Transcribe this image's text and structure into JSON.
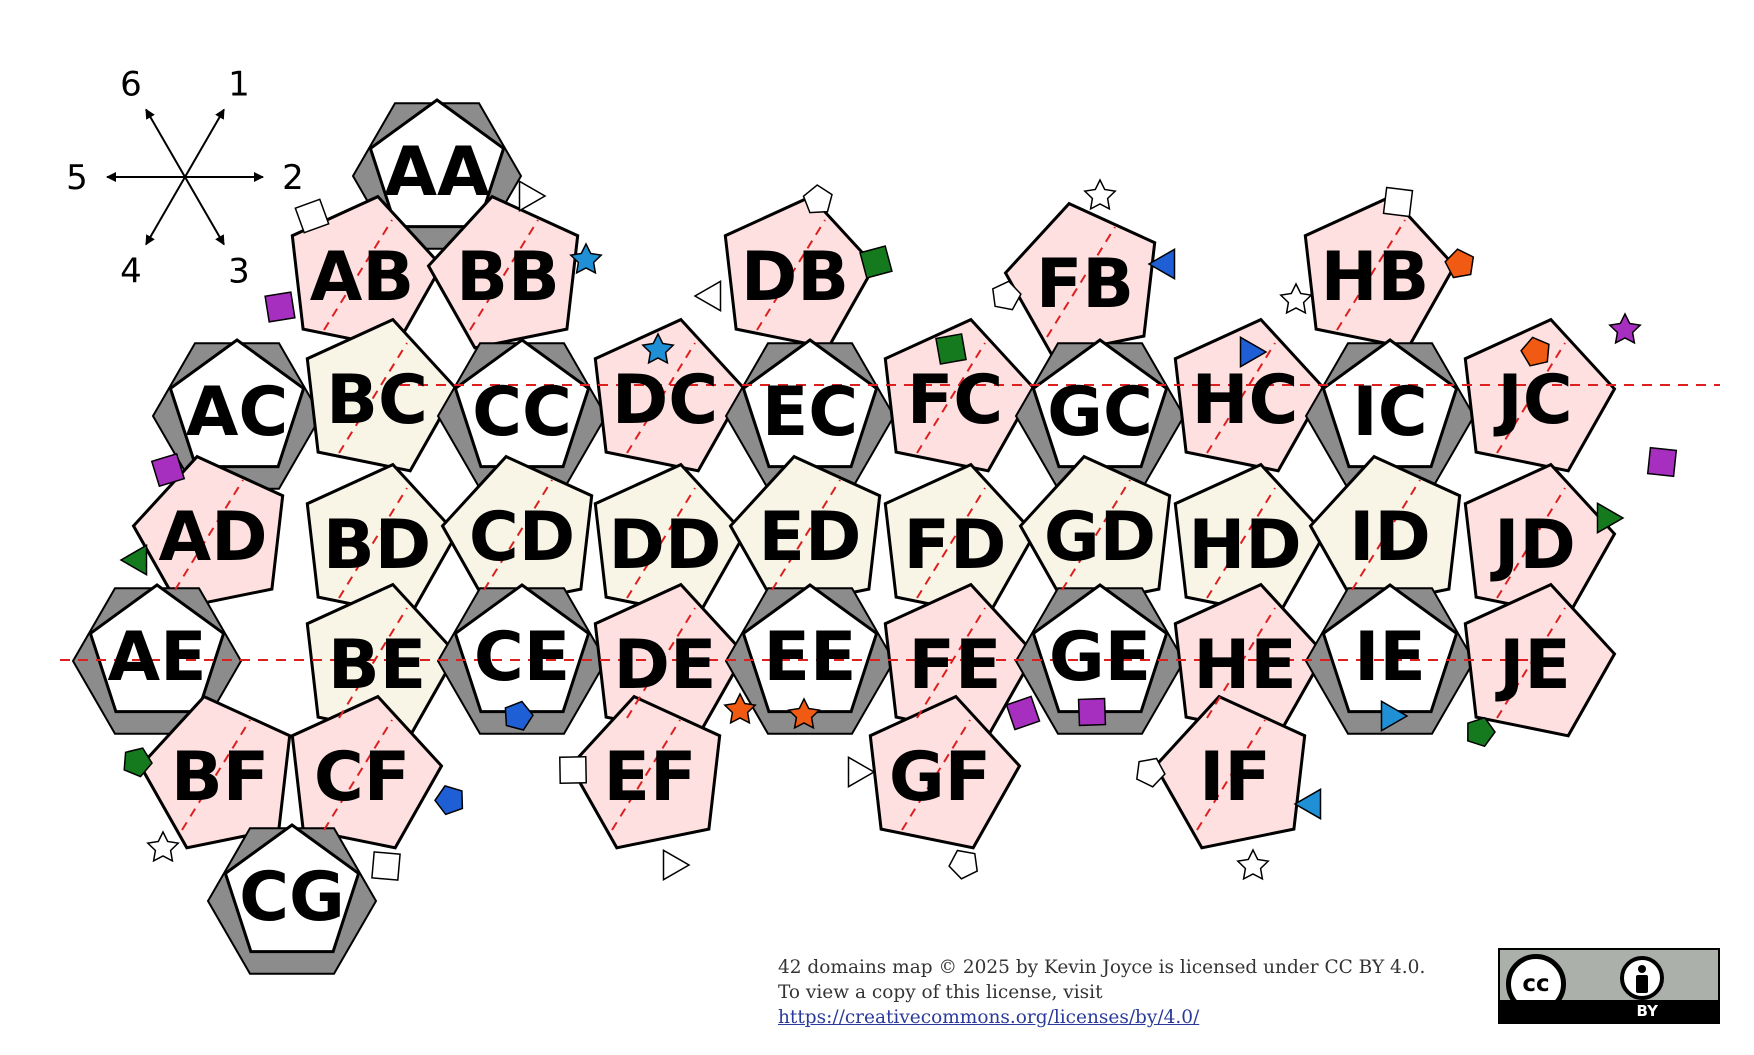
{
  "directions": [
    {
      "label": "1",
      "dir": 1
    },
    {
      "label": "2",
      "dir": 2
    },
    {
      "label": "3",
      "dir": 3
    },
    {
      "label": "4",
      "dir": 4
    },
    {
      "label": "5",
      "dir": 5
    },
    {
      "label": "6",
      "dir": 6
    }
  ],
  "colors": {
    "pink": "#fde0df",
    "cream": "#f8f4e6",
    "white": "#ffffff",
    "shadow": "#8c8c8c",
    "cut_line": "#dd1f1f",
    "edge": "#000000"
  },
  "domains": [
    {
      "id": "AA",
      "type": "white"
    },
    {
      "id": "AB",
      "type": "pink"
    },
    {
      "id": "BB",
      "type": "pink"
    },
    {
      "id": "DB",
      "type": "pink"
    },
    {
      "id": "FB",
      "type": "pink"
    },
    {
      "id": "HB",
      "type": "pink"
    },
    {
      "id": "AC",
      "type": "white"
    },
    {
      "id": "BC",
      "type": "cream"
    },
    {
      "id": "CC",
      "type": "white"
    },
    {
      "id": "DC",
      "type": "pink"
    },
    {
      "id": "EC",
      "type": "white"
    },
    {
      "id": "FC",
      "type": "pink"
    },
    {
      "id": "GC",
      "type": "white"
    },
    {
      "id": "HC",
      "type": "pink"
    },
    {
      "id": "IC",
      "type": "white"
    },
    {
      "id": "JC",
      "type": "pink"
    },
    {
      "id": "AD",
      "type": "pink"
    },
    {
      "id": "BD",
      "type": "cream"
    },
    {
      "id": "CD",
      "type": "cream"
    },
    {
      "id": "DD",
      "type": "cream"
    },
    {
      "id": "ED",
      "type": "cream"
    },
    {
      "id": "FD",
      "type": "cream"
    },
    {
      "id": "GD",
      "type": "cream"
    },
    {
      "id": "HD",
      "type": "cream"
    },
    {
      "id": "ID",
      "type": "cream"
    },
    {
      "id": "JD",
      "type": "pink"
    },
    {
      "id": "AE",
      "type": "white"
    },
    {
      "id": "BE",
      "type": "cream"
    },
    {
      "id": "CE",
      "type": "white"
    },
    {
      "id": "DE",
      "type": "pink"
    },
    {
      "id": "EE",
      "type": "white"
    },
    {
      "id": "FE",
      "type": "pink"
    },
    {
      "id": "GE",
      "type": "white"
    },
    {
      "id": "HE",
      "type": "pink"
    },
    {
      "id": "IE",
      "type": "white"
    },
    {
      "id": "JE",
      "type": "pink"
    },
    {
      "id": "BF",
      "type": "pink"
    },
    {
      "id": "CF",
      "type": "pink"
    },
    {
      "id": "EF",
      "type": "pink"
    },
    {
      "id": "GF",
      "type": "pink"
    },
    {
      "id": "IF",
      "type": "pink"
    },
    {
      "id": "CG",
      "type": "white"
    }
  ],
  "tabs": [
    {
      "shape": "square",
      "color": "#ffffff"
    },
    {
      "shape": "triangle",
      "color": "#ffffff"
    },
    {
      "shape": "star",
      "color": "#1f8fd6"
    },
    {
      "shape": "square",
      "color": "#a62fbf"
    },
    {
      "shape": "pentagon",
      "color": "#ffffff"
    },
    {
      "shape": "square",
      "color": "#157a1e"
    },
    {
      "shape": "triangle",
      "color": "#ffffff"
    },
    {
      "shape": "star",
      "color": "#ffffff"
    },
    {
      "shape": "triangle",
      "color": "#1f5fd6"
    },
    {
      "shape": "pentagon",
      "color": "#ffffff"
    },
    {
      "shape": "square",
      "color": "#157a1e"
    },
    {
      "shape": "square",
      "color": "#ffffff"
    },
    {
      "shape": "pentagon",
      "color": "#f05a12"
    },
    {
      "shape": "star",
      "color": "#ffffff"
    },
    {
      "shape": "star",
      "color": "#1f8fd6"
    },
    {
      "shape": "triangle",
      "color": "#1f5fd6"
    },
    {
      "shape": "pentagon",
      "color": "#f05a12"
    },
    {
      "shape": "star",
      "color": "#a62fbf"
    },
    {
      "shape": "square",
      "color": "#a62fbf"
    },
    {
      "shape": "square",
      "color": "#a62fbf"
    },
    {
      "shape": "triangle",
      "color": "#157a1e"
    },
    {
      "shape": "triangle",
      "color": "#157a1e"
    },
    {
      "shape": "pentagon",
      "color": "#157a1e"
    },
    {
      "shape": "star",
      "color": "#ffffff"
    },
    {
      "shape": "pentagon",
      "color": "#1f5fd6"
    },
    {
      "shape": "square",
      "color": "#ffffff"
    },
    {
      "shape": "pentagon",
      "color": "#1f5fd6"
    },
    {
      "shape": "square",
      "color": "#ffffff"
    },
    {
      "shape": "star",
      "color": "#f05a12"
    },
    {
      "shape": "triangle",
      "color": "#ffffff"
    },
    {
      "shape": "star",
      "color": "#f05a12"
    },
    {
      "shape": "triangle",
      "color": "#ffffff"
    },
    {
      "shape": "pentagon",
      "color": "#ffffff"
    },
    {
      "shape": "square",
      "color": "#a62fbf"
    },
    {
      "shape": "square",
      "color": "#a62fbf"
    },
    {
      "shape": "pentagon",
      "color": "#ffffff"
    },
    {
      "shape": "star",
      "color": "#ffffff"
    },
    {
      "shape": "triangle",
      "color": "#1f8fd6"
    },
    {
      "shape": "triangle",
      "color": "#1f8fd6"
    },
    {
      "shape": "pentagon",
      "color": "#157a1e"
    }
  ],
  "credit": {
    "line1": "42 domains map  © 2025 by Kevin Joyce is licensed under CC BY 4.0.",
    "line2_prefix": "To view a copy of this license, visit ",
    "link_text": "https://creativecommons.org/licenses/by/4.0/"
  },
  "badge": {
    "cc_text": "cc",
    "by_text": "BY"
  }
}
